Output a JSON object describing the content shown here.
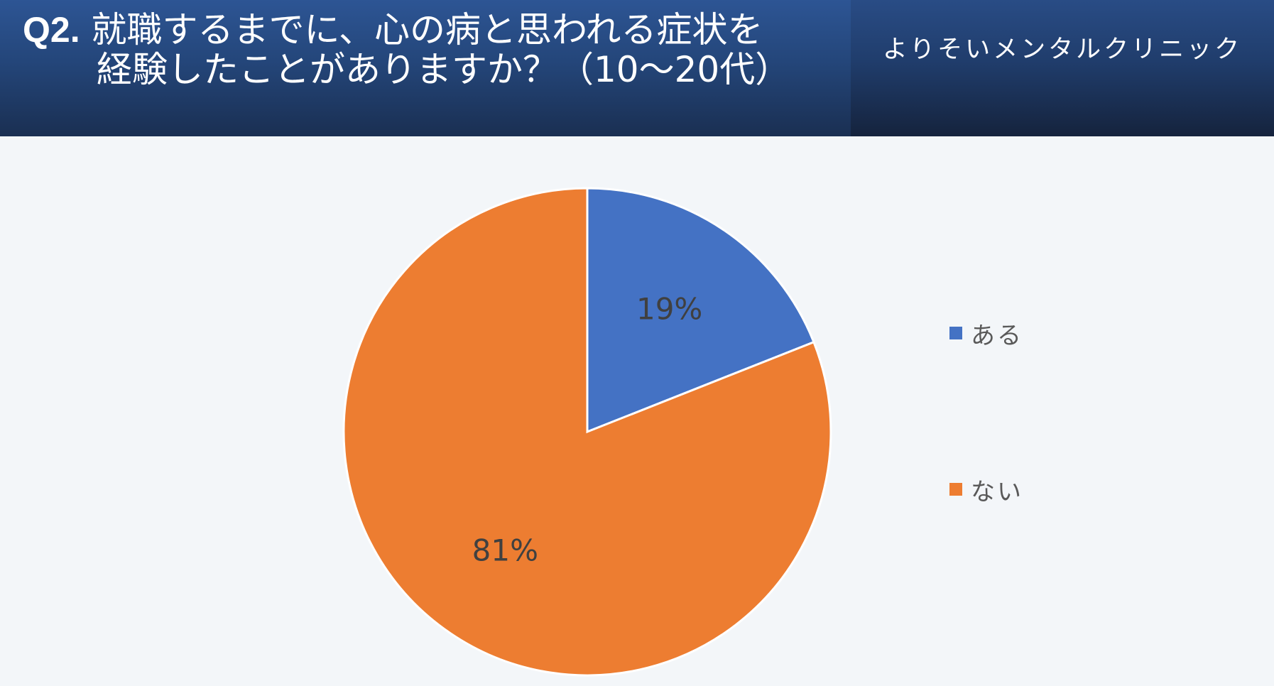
{
  "header": {
    "question_no": "Q2.",
    "title_line1": "就職するまでに、心の病と思われる症状を",
    "title_line2": "経験したことがありますか？（10～20代）",
    "clinic": "よりそいメンタルクリニック"
  },
  "chart_data": {
    "type": "pie",
    "categories": [
      "ある",
      "ない"
    ],
    "values": [
      19,
      81
    ],
    "labels": [
      "19%",
      "81%"
    ],
    "colors": [
      "#4472c4",
      "#ed7d31"
    ],
    "legend_position": "right"
  },
  "colors": {
    "background": "#f3f6f9",
    "header": "#24467a",
    "label_text": "#404040"
  }
}
